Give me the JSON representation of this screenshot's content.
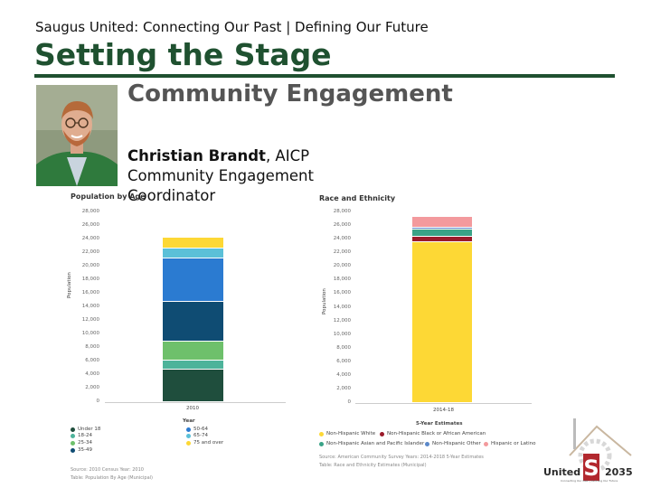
{
  "header": {
    "subtitle": "Saugus United: Connecting Our Past | Defining Our Future",
    "title": "Setting the Stage",
    "section_heading": "Community Engagement"
  },
  "person": {
    "name": "Christian Brandt",
    "credential": ", AICP",
    "role_line1": "Community Engagement",
    "role_line2": "Coordinator"
  },
  "logo": {
    "word_left": "United",
    "letter": "S",
    "word_right": "2035",
    "tagline": "Connecting Our Past | Defining Our Future"
  },
  "chart_data": [
    {
      "type": "bar",
      "title": "Population by Age",
      "ylabel": "Population",
      "categories": [
        "2010"
      ],
      "ylim": [
        0,
        28000
      ],
      "yticks": [
        "0",
        "2,000",
        "4,000",
        "6,000",
        "8,000",
        "10,000",
        "12,000",
        "14,000",
        "16,000",
        "18,000",
        "20,000",
        "22,000",
        "24,000",
        "26,000",
        "28,000"
      ],
      "series": [
        {
          "name": "Under 18",
          "color": "#1f4e3d",
          "values": [
            4800
          ]
        },
        {
          "name": "18-24",
          "color": "#4db39a",
          "values": [
            1300
          ]
        },
        {
          "name": "25-34",
          "color": "#6ec06b",
          "values": [
            2800
          ]
        },
        {
          "name": "35-49",
          "color": "#0f4c73",
          "values": [
            5900
          ]
        },
        {
          "name": "50-64",
          "color": "#2b7bd1",
          "values": [
            6400
          ]
        },
        {
          "name": "65-74",
          "color": "#5bc0d8",
          "values": [
            1500
          ]
        },
        {
          "name": "75 and over",
          "color": "#fdd835",
          "values": [
            1600
          ]
        }
      ],
      "legend_heading": "Year",
      "source_line1": "Source: 2010 Census     Year: 2010",
      "source_line2": "Table: Population By Age (Municipal)"
    },
    {
      "type": "bar",
      "title": "Race and Ethnicity",
      "ylabel": "Population",
      "categories": [
        "2014-18"
      ],
      "ylim": [
        0,
        28000
      ],
      "yticks": [
        "0",
        "2,000",
        "4,000",
        "6,000",
        "8,000",
        "10,000",
        "12,000",
        "14,000",
        "16,000",
        "18,000",
        "20,000",
        "22,000",
        "24,000",
        "26,000",
        "28,000"
      ],
      "series": [
        {
          "name": "Non-Hispanic White",
          "color": "#fdd835",
          "values": [
            23600
          ]
        },
        {
          "name": "Non-Hispanic Black or African American",
          "color": "#9b1b2a",
          "values": [
            800
          ]
        },
        {
          "name": "Non-Hispanic Asian and Pacific Islander",
          "color": "#3aa387",
          "values": [
            1100
          ]
        },
        {
          "name": "Non-Hispanic Other",
          "color": "#5b88c9",
          "values": [
            300
          ]
        },
        {
          "name": "Hispanic or Latino",
          "color": "#f39a9d",
          "values": [
            1500
          ]
        }
      ],
      "legend_heading": "5-Year Estimates",
      "source_line1": "Source: American Community Survey     Years: 2014-2018 5-Year Estimates",
      "source_line2": "Table: Race and Ethnicity Estimates (Municipal)"
    }
  ]
}
